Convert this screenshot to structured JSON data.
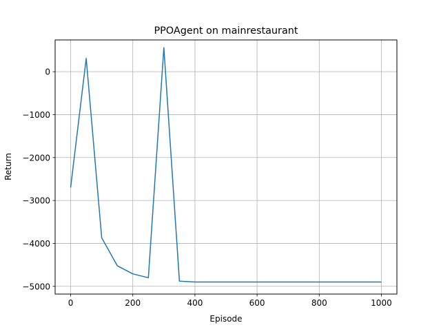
{
  "chart_data": {
    "type": "line",
    "title": "PPOAgent on mainrestaurant",
    "xlabel": "Episode",
    "ylabel": "Return",
    "xlim": [
      -50,
      1050
    ],
    "ylim": [
      -5180,
      740
    ],
    "x_ticks": [
      0,
      200,
      400,
      600,
      800,
      1000
    ],
    "x_tick_labels": [
      "0",
      "200",
      "400",
      "600",
      "800",
      "1000"
    ],
    "y_ticks": [
      0,
      -1000,
      -2000,
      -3000,
      -4000,
      -5000
    ],
    "y_tick_labels": [
      "0",
      "−1000",
      "−2000",
      "−3000",
      "−4000",
      "−5000"
    ],
    "grid": true,
    "series": [
      {
        "color": "#1f77b4",
        "x": [
          0,
          50,
          100,
          150,
          200,
          250,
          300,
          350,
          400,
          450,
          500,
          550,
          600,
          650,
          700,
          750,
          800,
          850,
          900,
          950,
          1000
        ],
        "y": [
          -2700,
          310,
          -3870,
          -4520,
          -4710,
          -4800,
          560,
          -4880,
          -4900,
          -4900,
          -4900,
          -4900,
          -4900,
          -4900,
          -4900,
          -4900,
          -4900,
          -4900,
          -4900,
          -4900,
          -4900
        ]
      }
    ]
  }
}
